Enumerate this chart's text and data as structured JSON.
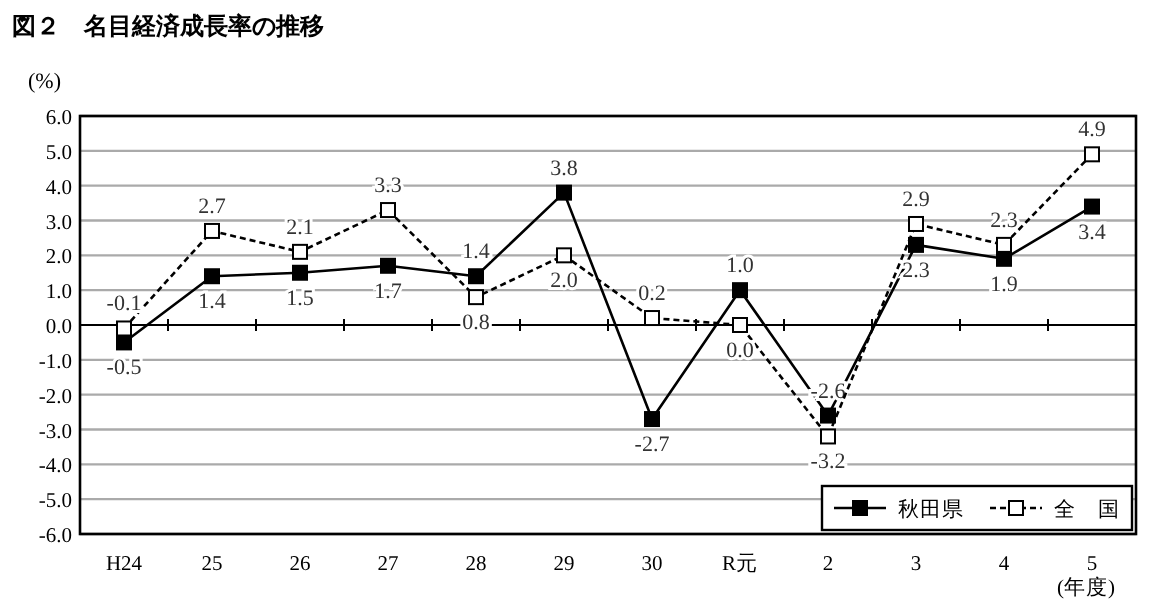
{
  "chart_data": {
    "type": "line",
    "title": "図２　名目経済成長率の推移",
    "ylabel": "(%)",
    "xlabel": "(年度)",
    "categories": [
      "H24",
      "25",
      "26",
      "27",
      "28",
      "29",
      "30",
      "R元",
      "2",
      "3",
      "4",
      "5"
    ],
    "ylim": [
      -6,
      6
    ],
    "yticks": [
      {
        "value": -6,
        "label": "-6.0"
      },
      {
        "value": -5,
        "label": "-5.0"
      },
      {
        "value": -4,
        "label": "-4.0"
      },
      {
        "value": -3,
        "label": "-3.0"
      },
      {
        "value": -2,
        "label": "-2.0"
      },
      {
        "value": -1,
        "label": "-1.0"
      },
      {
        "value": 0,
        "label": "0.0"
      },
      {
        "value": 1,
        "label": "1.0"
      },
      {
        "value": 2,
        "label": "2.0"
      },
      {
        "value": 3,
        "label": "3.0"
      },
      {
        "value": 4,
        "label": "4.0"
      },
      {
        "value": 5,
        "label": "5.0"
      },
      {
        "value": 6,
        "label": "6.0"
      }
    ],
    "grid": "y",
    "legend": "bottom right",
    "marker": "square",
    "series": [
      {
        "name": "秋田県",
        "color": "#000000",
        "line_style": "solid",
        "values": [
          -0.5,
          1.4,
          1.5,
          1.7,
          1.4,
          3.8,
          -2.7,
          1.0,
          -2.6,
          2.3,
          1.9,
          3.4
        ],
        "value_labels": [
          "-0.5",
          "1.4",
          "1.5",
          "1.7",
          "1.4",
          "3.8",
          "-2.7",
          "1.0",
          "-2.6",
          "2.3",
          "1.9",
          "3.4"
        ]
      },
      {
        "name": "全　国",
        "color": "#000000",
        "line_style": "dashed",
        "values": [
          -0.1,
          2.7,
          2.1,
          3.3,
          0.8,
          2.0,
          0.2,
          0.0,
          -3.2,
          2.9,
          2.3,
          4.9
        ],
        "value_labels": [
          "-0.1",
          "2.7",
          "2.1",
          "3.3",
          "0.8",
          "2.0",
          "0.2",
          "0.0",
          "-3.2",
          "2.9",
          "2.3",
          "4.9"
        ]
      }
    ]
  }
}
